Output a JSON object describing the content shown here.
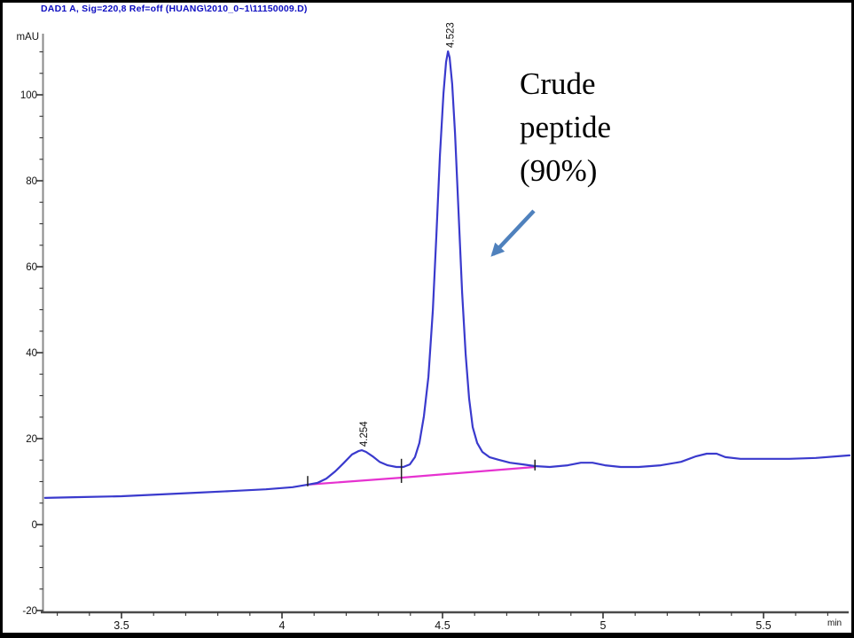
{
  "header": {
    "title": "DAD1 A, Sig=220,8 Ref=off (HUANG\\2010_0~1\\11150009.D)",
    "title_color": "#0c0cc0"
  },
  "annotation": {
    "lines": [
      "Crude",
      "peptide",
      "(90%)"
    ],
    "arrow_color": "#4f81bd"
  },
  "chart_data": {
    "type": "line",
    "title": "DAD1 A, Sig=220,8 Ref=off (HUANG\\2010_0~1\\11150009.D)",
    "xlabel": "min",
    "ylabel": "mAU",
    "xlim": [
      3.26,
      5.77
    ],
    "ylim": [
      -21,
      114
    ],
    "grid": false,
    "x_ticks_major": [
      3.5,
      4.0,
      4.5,
      5.0,
      5.5
    ],
    "x_tick_labels": [
      "3.5",
      "4",
      "4.5",
      "5",
      "5.5"
    ],
    "x_minor_step": 0.1,
    "y_ticks_major": [
      100,
      80,
      60,
      40,
      20,
      0,
      -20
    ],
    "y_tick_labels": [
      "100",
      "80",
      "60",
      "40",
      "20",
      "0",
      "-20"
    ],
    "y_minor_step": 5,
    "axis_color": "#4a4a4a",
    "tick_label_color": "#111111",
    "series": [
      {
        "name": "integration-baseline",
        "color": "#e632d0",
        "points": [
          [
            4.08,
            9.3
          ],
          [
            4.37,
            10.9
          ],
          [
            4.788,
            13.4
          ]
        ]
      },
      {
        "name": "dad1-signal",
        "color": "#3a3acd",
        "points": [
          [
            3.262,
            6.2
          ],
          [
            3.37,
            6.4
          ],
          [
            3.5,
            6.6
          ],
          [
            3.619,
            7.0
          ],
          [
            3.729,
            7.4
          ],
          [
            3.84,
            7.8
          ],
          [
            3.95,
            8.2
          ],
          [
            4.033,
            8.7
          ],
          [
            4.08,
            9.3
          ],
          [
            4.11,
            9.7
          ],
          [
            4.138,
            10.7
          ],
          [
            4.166,
            12.4
          ],
          [
            4.193,
            14.4
          ],
          [
            4.218,
            16.3
          ],
          [
            4.238,
            17.1
          ],
          [
            4.249,
            17.3
          ],
          [
            4.262,
            16.9
          ],
          [
            4.282,
            15.9
          ],
          [
            4.304,
            14.6
          ],
          [
            4.329,
            13.8
          ],
          [
            4.356,
            13.4
          ],
          [
            4.378,
            13.4
          ],
          [
            4.398,
            14.0
          ],
          [
            4.414,
            15.7
          ],
          [
            4.428,
            19.0
          ],
          [
            4.442,
            25.2
          ],
          [
            4.456,
            34.4
          ],
          [
            4.47,
            49.9
          ],
          [
            4.481,
            67.4
          ],
          [
            4.492,
            86.0
          ],
          [
            4.503,
            100.4
          ],
          [
            4.511,
            107.6
          ],
          [
            4.517,
            110.1
          ],
          [
            4.522,
            108.7
          ],
          [
            4.53,
            102.5
          ],
          [
            4.539,
            91.1
          ],
          [
            4.55,
            72.6
          ],
          [
            4.561,
            54.0
          ],
          [
            4.572,
            39.6
          ],
          [
            4.583,
            29.3
          ],
          [
            4.594,
            22.7
          ],
          [
            4.608,
            19.0
          ],
          [
            4.624,
            16.9
          ],
          [
            4.646,
            15.7
          ],
          [
            4.674,
            15.1
          ],
          [
            4.71,
            14.4
          ],
          [
            4.751,
            14.0
          ],
          [
            4.787,
            13.6
          ],
          [
            4.834,
            13.4
          ],
          [
            4.89,
            13.8
          ],
          [
            4.931,
            14.4
          ],
          [
            4.967,
            14.4
          ],
          [
            5.006,
            13.8
          ],
          [
            5.055,
            13.4
          ],
          [
            5.111,
            13.4
          ],
          [
            5.18,
            13.8
          ],
          [
            5.243,
            14.6
          ],
          [
            5.29,
            15.9
          ],
          [
            5.323,
            16.5
          ],
          [
            5.354,
            16.5
          ],
          [
            5.381,
            15.7
          ],
          [
            5.428,
            15.3
          ],
          [
            5.497,
            15.3
          ],
          [
            5.58,
            15.3
          ],
          [
            5.663,
            15.5
          ],
          [
            5.732,
            15.9
          ],
          [
            5.768,
            16.1
          ]
        ]
      }
    ],
    "peaks": [
      {
        "retention_time": "4.254",
        "t": 4.254,
        "apex_mau": 17.3
      },
      {
        "retention_time": "4.523",
        "t": 4.523,
        "apex_mau": 110.1
      }
    ],
    "integration_marks": [
      {
        "t": 4.08,
        "from_mau": 8.9,
        "to_mau": 11.3
      },
      {
        "t": 4.372,
        "from_mau": 9.7,
        "to_mau": 15.3
      },
      {
        "t": 4.788,
        "from_mau": 12.6,
        "to_mau": 15.1
      }
    ]
  }
}
